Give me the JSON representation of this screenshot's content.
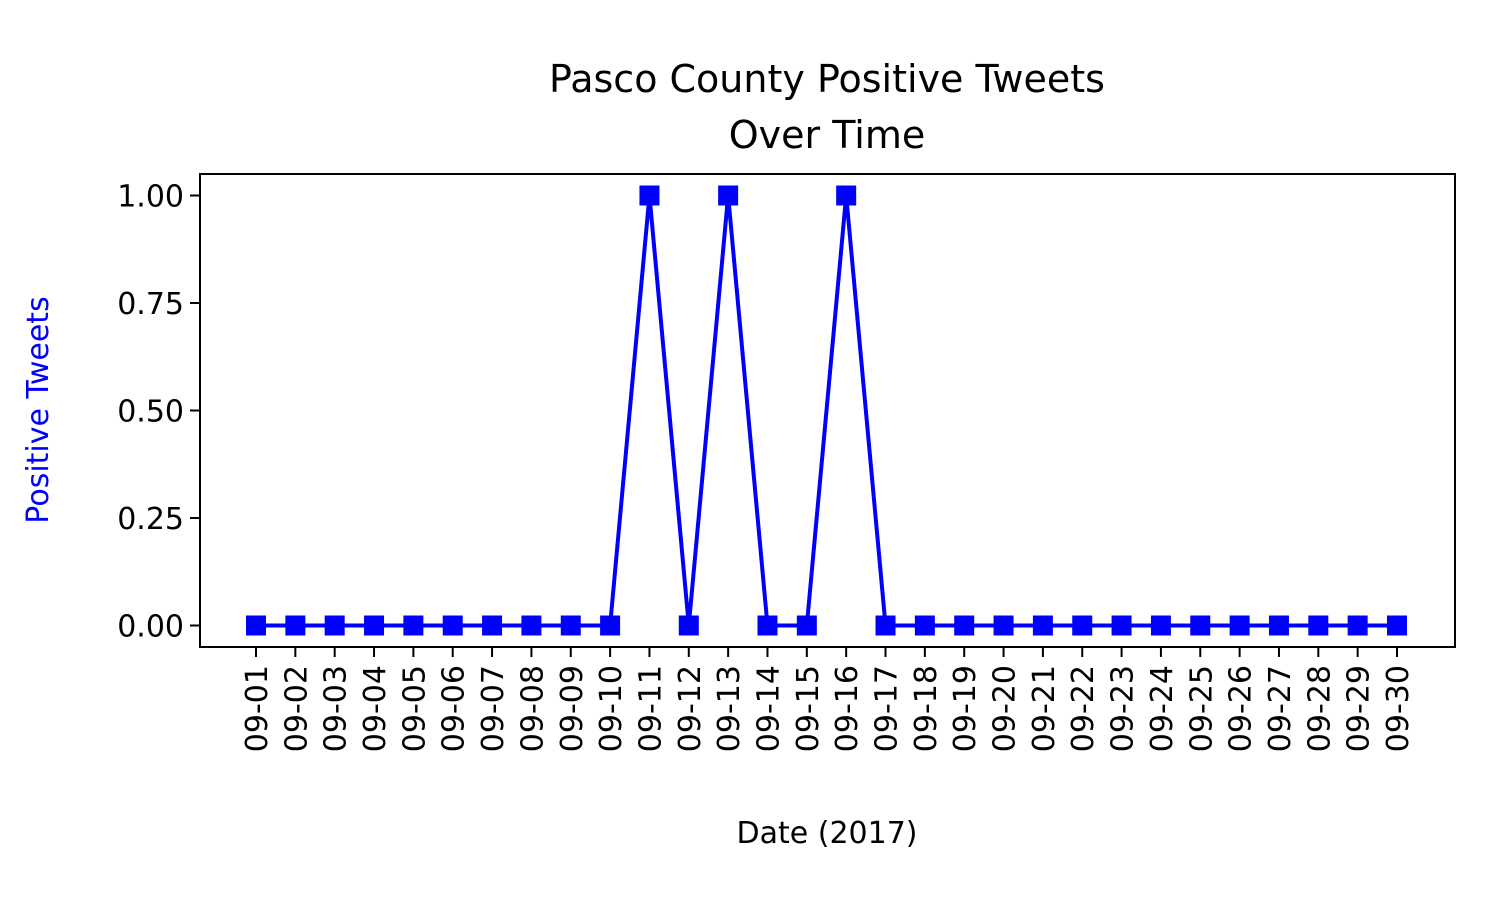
{
  "chart_data": {
    "type": "line",
    "title": [
      "Pasco County Positive Tweets",
      "Over Time"
    ],
    "xlabel": "Date (2017)",
    "ylabel": "Positive Tweets",
    "ylim": [
      -0.05,
      1.05
    ],
    "yticks": [
      "0.00",
      "0.25",
      "0.50",
      "0.75",
      "1.00"
    ],
    "ytick_values": [
      0,
      0.25,
      0.5,
      0.75,
      1.0
    ],
    "grid": false,
    "legend": "none",
    "marker": "square",
    "colors": {
      "series": "#0000ff",
      "ylabel": "#0000ff",
      "axes": "#000000",
      "text": "#000000"
    },
    "x": [
      "09-01",
      "09-02",
      "09-03",
      "09-04",
      "09-05",
      "09-06",
      "09-07",
      "09-08",
      "09-09",
      "09-10",
      "09-11",
      "09-12",
      "09-13",
      "09-14",
      "09-15",
      "09-16",
      "09-17",
      "09-18",
      "09-19",
      "09-20",
      "09-21",
      "09-22",
      "09-23",
      "09-24",
      "09-25",
      "09-26",
      "09-27",
      "09-28",
      "09-29",
      "09-30"
    ],
    "series": [
      {
        "values": [
          0,
          0,
          0,
          0,
          0,
          0,
          0,
          0,
          0,
          0,
          1,
          0,
          1,
          0,
          0,
          1,
          0,
          0,
          0,
          0,
          0,
          0,
          0,
          0,
          0,
          0,
          0,
          0,
          0,
          0
        ]
      }
    ]
  }
}
